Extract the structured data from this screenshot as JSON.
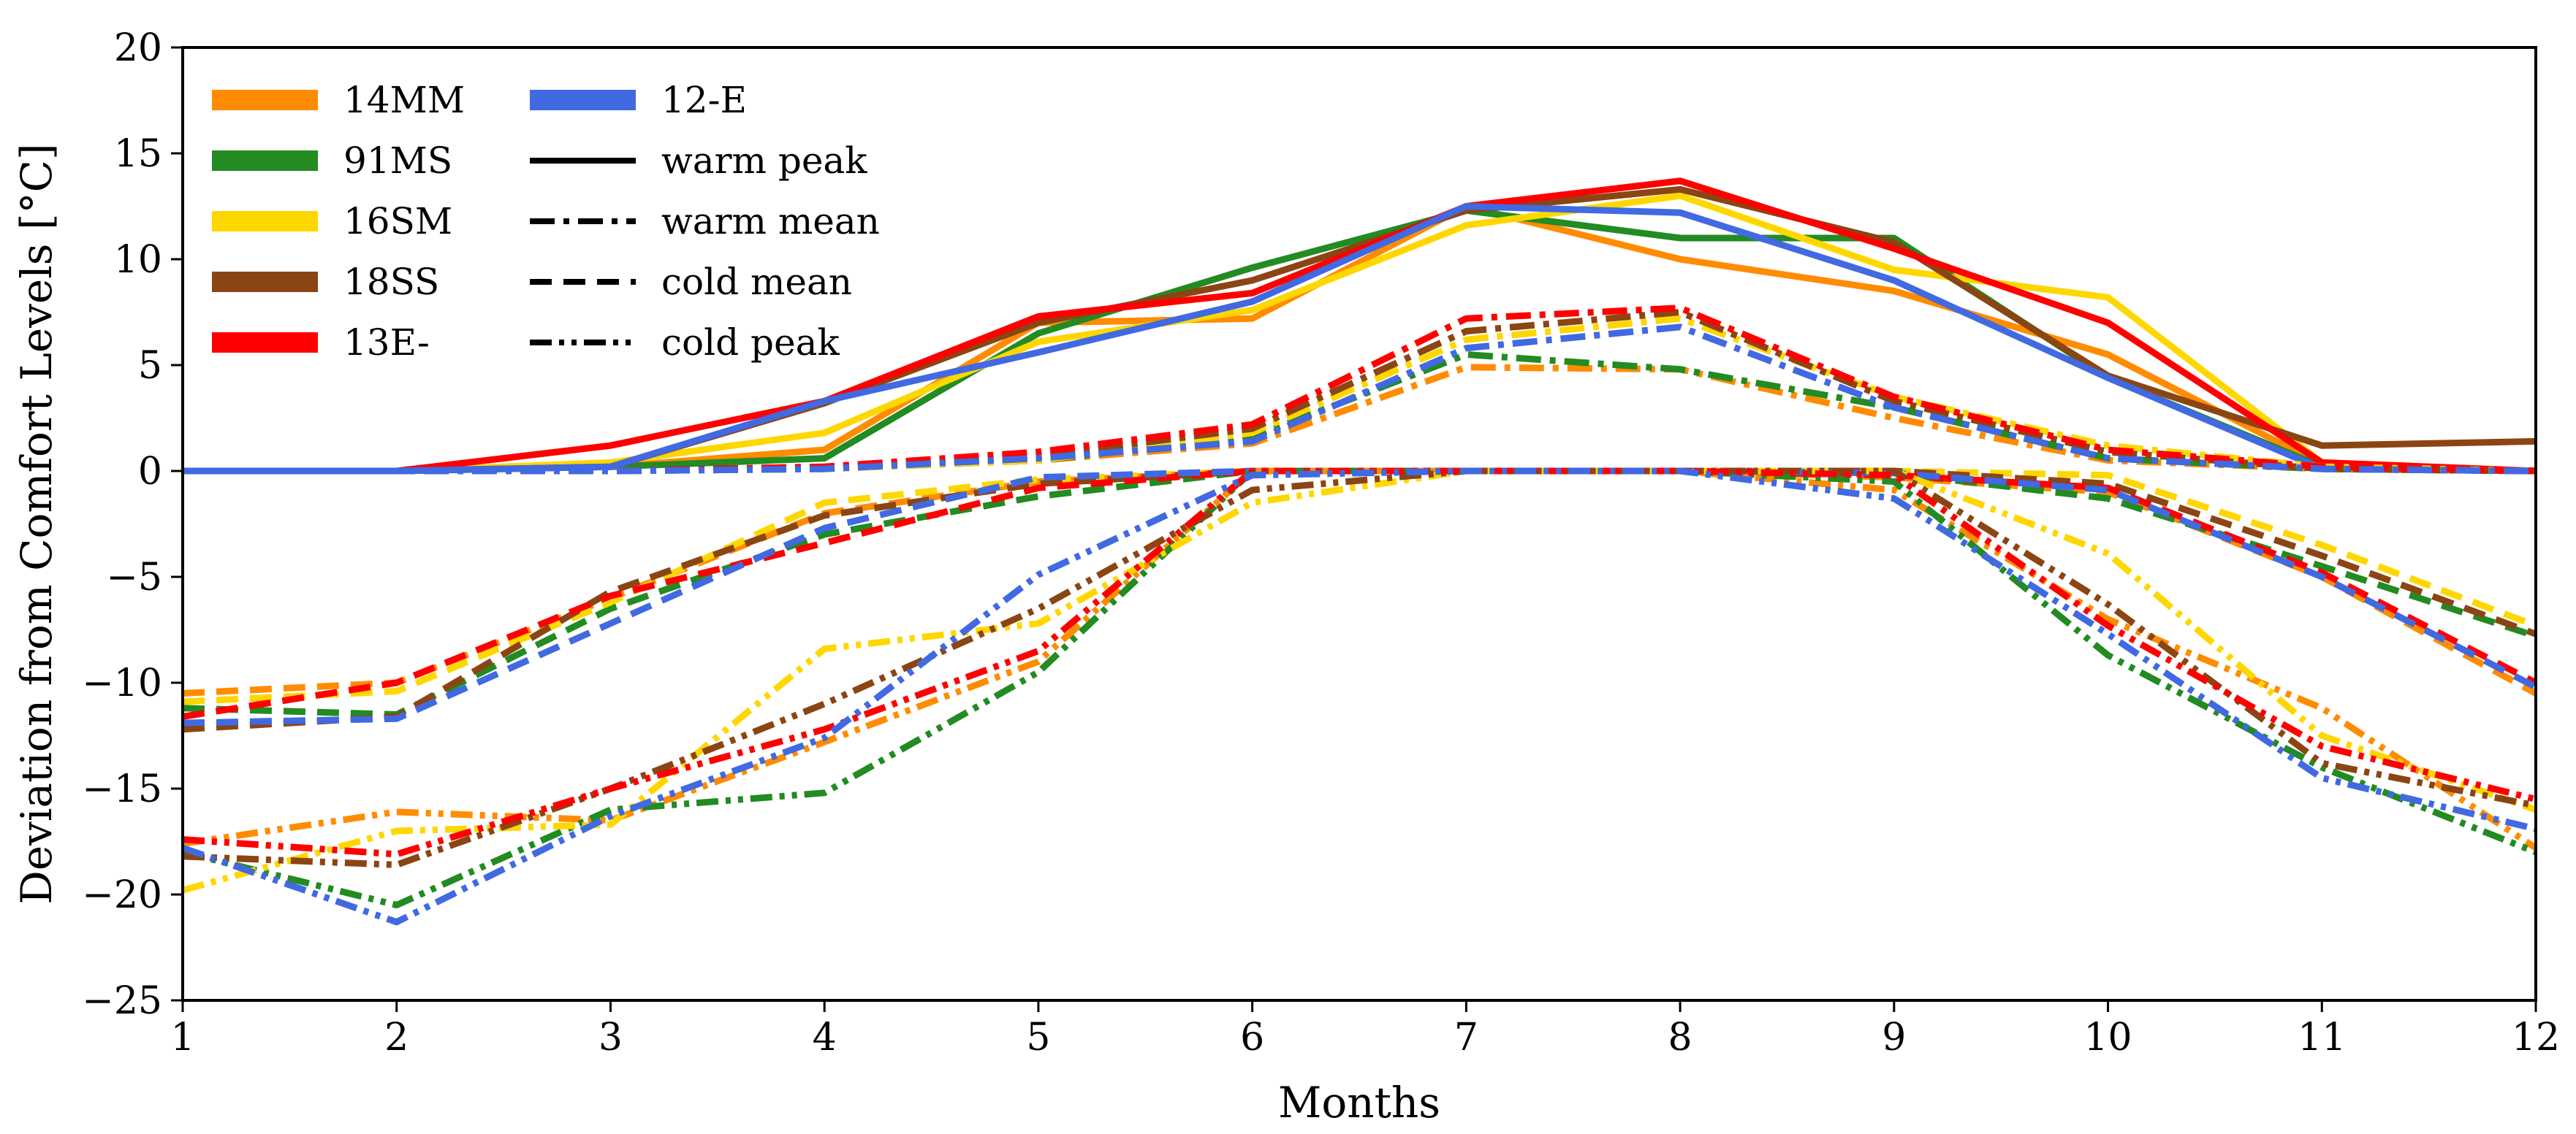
{
  "chart_data": {
    "type": "line",
    "xlabel": "Months",
    "ylabel": "Deviation from Comfort Levels [°C]",
    "xlim": [
      1,
      12
    ],
    "ylim": [
      -25,
      20
    ],
    "xticks": [
      1,
      2,
      3,
      4,
      5,
      6,
      7,
      8,
      9,
      10,
      11,
      12
    ],
    "yticks": [
      -25,
      -20,
      -15,
      -10,
      -5,
      0,
      5,
      10,
      15,
      20
    ],
    "grid": false,
    "legend_placement": "top-left",
    "x": [
      1,
      2,
      3,
      4,
      5,
      6,
      7,
      8,
      9,
      10,
      11,
      12
    ],
    "locations": [
      {
        "name": "14MM",
        "color": "#ff8c00"
      },
      {
        "name": "91MS",
        "color": "#228b22"
      },
      {
        "name": "16SM",
        "color": "#ffd700"
      },
      {
        "name": "18SS",
        "color": "#8b4513"
      },
      {
        "name": "13E-",
        "color": "#ff0000"
      },
      {
        "name": "12-E",
        "color": "#4169e1"
      }
    ],
    "line_styles": [
      {
        "name": "warm peak",
        "dash": "solid"
      },
      {
        "name": "warm mean",
        "dash": "dashdot"
      },
      {
        "name": "cold mean",
        "dash": "dashed"
      },
      {
        "name": "cold peak",
        "dash": "dashdotdot"
      }
    ],
    "series": [
      {
        "location": "14MM",
        "style": "warm peak",
        "values": [
          0,
          0,
          0.2,
          1.0,
          7.0,
          7.2,
          12.5,
          10.0,
          8.5,
          5.5,
          0.3,
          0
        ]
      },
      {
        "location": "91MS",
        "style": "warm peak",
        "values": [
          0,
          0,
          0.2,
          0.6,
          6.5,
          9.6,
          12.3,
          11.0,
          11.0,
          4.4,
          0.2,
          0
        ]
      },
      {
        "location": "16SM",
        "style": "warm peak",
        "values": [
          0,
          0,
          0.4,
          1.8,
          6.1,
          7.6,
          11.6,
          13.0,
          9.5,
          8.2,
          0.4,
          0
        ]
      },
      {
        "location": "18SS",
        "style": "warm peak",
        "values": [
          0,
          0,
          0.2,
          3.2,
          7.0,
          9.0,
          12.3,
          13.3,
          10.8,
          4.5,
          1.2,
          1.4
        ]
      },
      {
        "location": "13E-",
        "style": "warm peak",
        "values": [
          0,
          0,
          1.2,
          3.3,
          7.3,
          8.4,
          12.5,
          13.7,
          10.5,
          7.0,
          0.4,
          0
        ]
      },
      {
        "location": "12-E",
        "style": "warm peak",
        "values": [
          0,
          0,
          0.2,
          3.3,
          5.6,
          8.0,
          12.5,
          12.2,
          9.0,
          4.4,
          0.1,
          0
        ]
      },
      {
        "location": "14MM",
        "style": "warm mean",
        "values": [
          0,
          0,
          0,
          0.1,
          0.5,
          1.3,
          4.9,
          4.8,
          2.5,
          0.5,
          0.1,
          0
        ]
      },
      {
        "location": "91MS",
        "style": "warm mean",
        "values": [
          0,
          0,
          0,
          0.1,
          0.5,
          1.6,
          5.5,
          4.8,
          3.0,
          0.6,
          0.1,
          0
        ]
      },
      {
        "location": "16SM",
        "style": "warm mean",
        "values": [
          0,
          0,
          0,
          0.1,
          0.5,
          1.8,
          6.2,
          7.2,
          3.5,
          1.2,
          0.2,
          0
        ]
      },
      {
        "location": "18SS",
        "style": "warm mean",
        "values": [
          0,
          0,
          0,
          0.2,
          0.7,
          2.0,
          6.6,
          7.5,
          3.3,
          0.9,
          0.1,
          0
        ]
      },
      {
        "location": "13E-",
        "style": "warm mean",
        "values": [
          0,
          0,
          0,
          0.2,
          0.9,
          2.2,
          7.2,
          7.7,
          3.5,
          1.0,
          0.2,
          0
        ]
      },
      {
        "location": "12-E",
        "style": "warm mean",
        "values": [
          0,
          0,
          0,
          0.1,
          0.6,
          1.4,
          5.8,
          6.8,
          3.0,
          0.6,
          0.1,
          0
        ]
      },
      {
        "location": "14MM",
        "style": "cold mean",
        "values": [
          -10.5,
          -10.0,
          -6.0,
          -2.0,
          -0.5,
          0,
          0,
          0,
          -0.3,
          -1.0,
          -5.0,
          -10.5
        ]
      },
      {
        "location": "91MS",
        "style": "cold mean",
        "values": [
          -11.2,
          -11.5,
          -6.5,
          -3.0,
          -1.2,
          0,
          0,
          0,
          -0.1,
          -1.3,
          -4.5,
          -7.8
        ]
      },
      {
        "location": "16SM",
        "style": "cold mean",
        "values": [
          -10.9,
          -10.4,
          -6.2,
          -1.5,
          -0.4,
          0,
          0,
          0,
          0,
          -0.2,
          -3.5,
          -7.3
        ]
      },
      {
        "location": "18SS",
        "style": "cold mean",
        "values": [
          -12.2,
          -11.6,
          -5.7,
          -2.1,
          -0.6,
          0,
          0,
          0,
          0,
          -0.6,
          -4.0,
          -7.7
        ]
      },
      {
        "location": "13E-",
        "style": "cold mean",
        "values": [
          -11.6,
          -10.0,
          -5.9,
          -3.4,
          -0.8,
          0,
          0,
          0,
          -0.2,
          -0.8,
          -4.8,
          -10.0
        ]
      },
      {
        "location": "12-E",
        "style": "cold mean",
        "values": [
          -11.9,
          -11.7,
          -7.2,
          -2.7,
          -0.3,
          0,
          0,
          0,
          -0.1,
          -0.9,
          -5.0,
          -10.2
        ]
      },
      {
        "location": "14MM",
        "style": "cold peak",
        "values": [
          -17.6,
          -16.1,
          -16.5,
          -12.8,
          -9.0,
          0,
          0,
          0,
          -0.9,
          -7.0,
          -11.2,
          -17.8
        ]
      },
      {
        "location": "91MS",
        "style": "cold peak",
        "values": [
          -18.0,
          -20.5,
          -16.0,
          -15.2,
          -9.5,
          0,
          0,
          0,
          -0.5,
          -8.7,
          -14.0,
          -18.0
        ]
      },
      {
        "location": "16SM",
        "style": "cold peak",
        "values": [
          -19.8,
          -17.0,
          -16.7,
          -8.4,
          -7.2,
          -1.5,
          0,
          0,
          0,
          -3.9,
          -12.5,
          -16.0
        ]
      },
      {
        "location": "18SS",
        "style": "cold peak",
        "values": [
          -18.2,
          -18.6,
          -15.0,
          -11.0,
          -6.5,
          -0.9,
          0,
          0,
          0,
          -6.3,
          -13.8,
          -15.8
        ]
      },
      {
        "location": "13E-",
        "style": "cold peak",
        "values": [
          -17.4,
          -18.1,
          -15.0,
          -12.2,
          -8.5,
          0,
          0,
          0,
          -0.2,
          -7.3,
          -13.0,
          -15.5
        ]
      },
      {
        "location": "12-E",
        "style": "cold peak",
        "values": [
          -17.8,
          -21.3,
          -16.3,
          -12.6,
          -4.9,
          -0.2,
          0,
          0,
          -1.3,
          -7.7,
          -14.5,
          -16.9
        ]
      }
    ]
  }
}
